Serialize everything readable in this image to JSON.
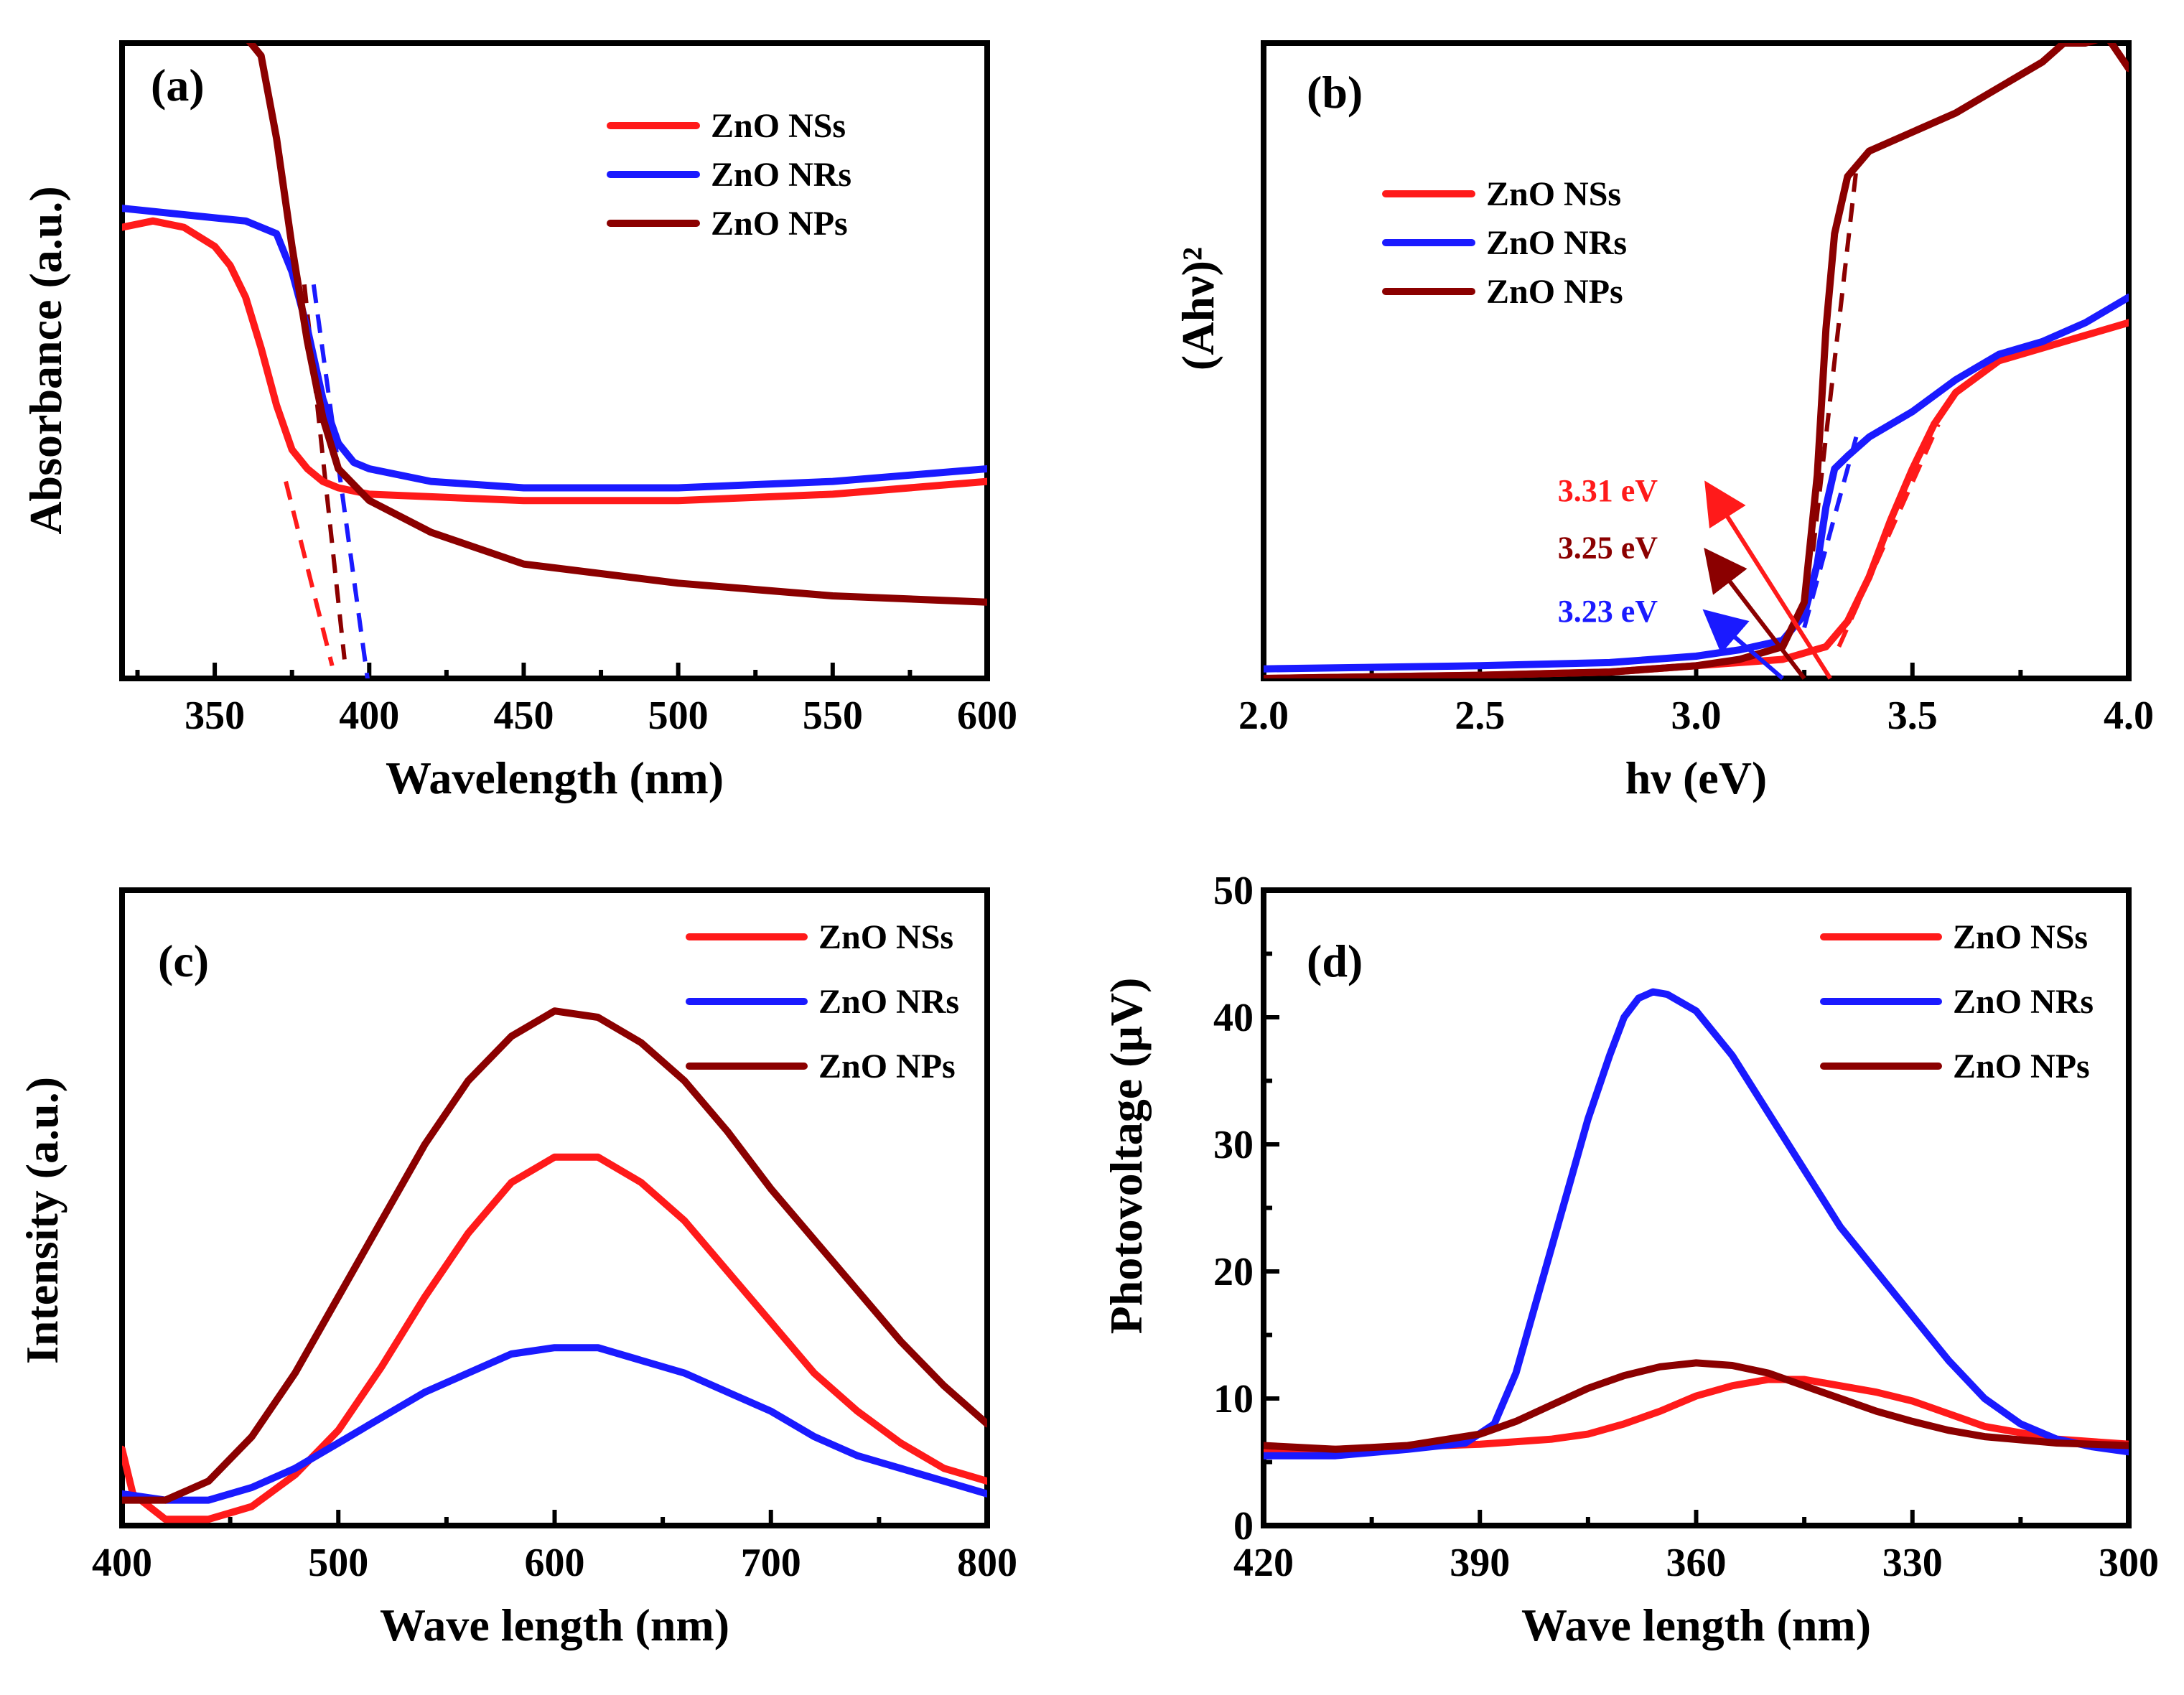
{
  "colors": {
    "NSs": "#ff1a1a",
    "NRs": "#1a1aff",
    "NPs": "#8b0000"
  },
  "chart_data": [
    {
      "id": "a",
      "type": "line",
      "panel_label": "(a)",
      "xlabel": "Wavelength (nm)",
      "ylabel": "Absorbance (a.u.)",
      "xlim": [
        320,
        600
      ],
      "ylim": [
        0,
        1.0
      ],
      "xticks": [
        350,
        400,
        450,
        500,
        550,
        600
      ],
      "yticks": [],
      "legend": [
        "ZnO NSs",
        "ZnO NRs",
        "ZnO NPs"
      ],
      "legend_position": "top-right",
      "series": [
        {
          "name": "ZnO NSs",
          "color_key": "NSs",
          "x": [
            320,
            330,
            340,
            350,
            355,
            360,
            365,
            370,
            375,
            380,
            385,
            390,
            400,
            450,
            500,
            550,
            600
          ],
          "y": [
            0.71,
            0.72,
            0.71,
            0.68,
            0.65,
            0.6,
            0.52,
            0.43,
            0.36,
            0.33,
            0.31,
            0.3,
            0.29,
            0.28,
            0.28,
            0.29,
            0.31
          ]
        },
        {
          "name": "ZnO NRs",
          "color_key": "NRs",
          "x": [
            320,
            340,
            360,
            370,
            375,
            380,
            385,
            390,
            395,
            400,
            420,
            450,
            500,
            550,
            600
          ],
          "y": [
            0.74,
            0.73,
            0.72,
            0.7,
            0.64,
            0.55,
            0.44,
            0.37,
            0.34,
            0.33,
            0.31,
            0.3,
            0.3,
            0.31,
            0.33
          ]
        },
        {
          "name": "ZnO NPs",
          "color_key": "NPs",
          "x": [
            320,
            330,
            340,
            350,
            360,
            365,
            370,
            375,
            380,
            385,
            390,
            400,
            420,
            450,
            500,
            550,
            600
          ],
          "y": [
            1.02,
            1.01,
            1.01,
            1.01,
            1.01,
            0.98,
            0.85,
            0.68,
            0.53,
            0.41,
            0.33,
            0.28,
            0.23,
            0.18,
            0.15,
            0.13,
            0.12
          ]
        }
      ],
      "fit_lines": [
        {
          "color_key": "NSs",
          "x": [
            373,
            388
          ],
          "y": [
            0.31,
            0.02
          ]
        },
        {
          "color_key": "NPs",
          "x": [
            379,
            392
          ],
          "y": [
            0.62,
            0.03
          ]
        },
        {
          "color_key": "NRs",
          "x": [
            382,
            400
          ],
          "y": [
            0.62,
            -0.02
          ]
        }
      ]
    },
    {
      "id": "b",
      "type": "line",
      "panel_label": "(b)",
      "xlabel": "hν (eV)",
      "ylabel": "(Ahν)²",
      "xlim": [
        2.0,
        4.0
      ],
      "ylim": [
        0,
        1.0
      ],
      "xticks": [
        2.0,
        2.5,
        3.0,
        3.5,
        4.0
      ],
      "xtick_labels": [
        "2.0",
        "2.5",
        "3.0",
        "3.5",
        "4.0"
      ],
      "yticks": [],
      "legend": [
        "ZnO NSs",
        "ZnO NRs",
        "ZnO NPs"
      ],
      "legend_position": "top-left",
      "series": [
        {
          "name": "ZnO NSs",
          "color_key": "NSs",
          "x": [
            2.0,
            2.5,
            2.8,
            3.0,
            3.2,
            3.3,
            3.35,
            3.4,
            3.45,
            3.5,
            3.55,
            3.6,
            3.7,
            3.8,
            3.9,
            4.0
          ],
          "y": [
            0.0,
            0.005,
            0.01,
            0.02,
            0.03,
            0.05,
            0.09,
            0.16,
            0.25,
            0.33,
            0.4,
            0.45,
            0.5,
            0.52,
            0.54,
            0.56
          ]
        },
        {
          "name": "ZnO NRs",
          "color_key": "NRs",
          "x": [
            2.0,
            2.5,
            2.8,
            3.0,
            3.1,
            3.2,
            3.25,
            3.28,
            3.3,
            3.32,
            3.35,
            3.4,
            3.5,
            3.6,
            3.7,
            3.8,
            3.9,
            4.0
          ],
          "y": [
            0.015,
            0.02,
            0.025,
            0.035,
            0.045,
            0.06,
            0.1,
            0.18,
            0.27,
            0.33,
            0.35,
            0.38,
            0.42,
            0.47,
            0.51,
            0.53,
            0.56,
            0.6
          ]
        },
        {
          "name": "ZnO NPs",
          "color_key": "NPs",
          "x": [
            2.0,
            2.5,
            2.8,
            3.0,
            3.1,
            3.2,
            3.25,
            3.28,
            3.3,
            3.32,
            3.35,
            3.4,
            3.5,
            3.6,
            3.7,
            3.8,
            3.85,
            3.9,
            3.95,
            4.0
          ],
          "y": [
            0.0,
            0.005,
            0.01,
            0.02,
            0.03,
            0.05,
            0.12,
            0.32,
            0.55,
            0.7,
            0.79,
            0.83,
            0.86,
            0.89,
            0.93,
            0.97,
            1.0,
            1.0,
            1.01,
            0.96
          ]
        }
      ],
      "fit_lines": [
        {
          "color_key": "NSs",
          "x": [
            3.33,
            3.56
          ],
          "y": [
            0.05,
            0.4
          ]
        },
        {
          "color_key": "NRs",
          "x": [
            3.25,
            3.37
          ],
          "y": [
            0.08,
            0.38
          ]
        },
        {
          "color_key": "NPs",
          "x": [
            3.27,
            3.37
          ],
          "y": [
            0.2,
            0.8
          ]
        }
      ],
      "annotations": [
        {
          "text": "3.31 eV",
          "color_key": "NSs",
          "label_x": 2.68,
          "label_y": 0.295,
          "arrow_from": [
            3.31,
            0.0
          ],
          "arrow_to": [
            3.03,
            0.3
          ]
        },
        {
          "text": "3.25 eV",
          "color_key": "NPs",
          "label_x": 2.68,
          "label_y": 0.205,
          "arrow_from": [
            3.25,
            0.0
          ],
          "arrow_to": [
            3.03,
            0.195
          ]
        },
        {
          "text": "3.23 eV",
          "color_key": "NRs",
          "label_x": 2.68,
          "label_y": 0.105,
          "arrow_from": [
            3.2,
            0.0
          ],
          "arrow_to": [
            3.03,
            0.1
          ]
        }
      ]
    },
    {
      "id": "c",
      "type": "line",
      "panel_label": "(c)",
      "xlabel": "Wave length (nm)",
      "ylabel": "Intensity (a.u.)",
      "xlim": [
        400,
        800
      ],
      "ylim": [
        0,
        1.0
      ],
      "xticks": [
        400,
        500,
        600,
        700,
        800
      ],
      "yticks": [],
      "legend": [
        "ZnO NSs",
        "ZnO NRs",
        "ZnO NPs"
      ],
      "legend_position": "top-right",
      "series": [
        {
          "name": "ZnO NSs",
          "color_key": "NSs",
          "x": [
            400,
            405,
            420,
            440,
            460,
            480,
            500,
            520,
            540,
            560,
            580,
            600,
            620,
            640,
            660,
            680,
            700,
            720,
            740,
            760,
            780,
            800
          ],
          "y": [
            0.12,
            0.05,
            0.01,
            0.01,
            0.03,
            0.08,
            0.15,
            0.25,
            0.36,
            0.46,
            0.54,
            0.58,
            0.58,
            0.54,
            0.48,
            0.4,
            0.32,
            0.24,
            0.18,
            0.13,
            0.09,
            0.07
          ]
        },
        {
          "name": "ZnO NRs",
          "color_key": "NRs",
          "x": [
            400,
            420,
            440,
            460,
            480,
            500,
            520,
            540,
            560,
            580,
            600,
            620,
            640,
            660,
            680,
            700,
            720,
            740,
            760,
            780,
            800
          ],
          "y": [
            0.05,
            0.04,
            0.04,
            0.06,
            0.09,
            0.13,
            0.17,
            0.21,
            0.24,
            0.27,
            0.28,
            0.28,
            0.26,
            0.24,
            0.21,
            0.18,
            0.14,
            0.11,
            0.09,
            0.07,
            0.05
          ]
        },
        {
          "name": "ZnO NPs",
          "color_key": "NPs",
          "x": [
            400,
            420,
            440,
            460,
            480,
            500,
            520,
            540,
            560,
            580,
            600,
            620,
            640,
            660,
            680,
            700,
            720,
            740,
            760,
            780,
            800
          ],
          "y": [
            0.04,
            0.04,
            0.07,
            0.14,
            0.24,
            0.36,
            0.48,
            0.6,
            0.7,
            0.77,
            0.81,
            0.8,
            0.76,
            0.7,
            0.62,
            0.53,
            0.45,
            0.37,
            0.29,
            0.22,
            0.16
          ]
        }
      ]
    },
    {
      "id": "d",
      "type": "line",
      "panel_label": "(d)",
      "xlabel": "Wave length (nm)",
      "ylabel": "Photovoltage (μV)",
      "xlim": [
        420,
        300
      ],
      "ylim": [
        0,
        50
      ],
      "xticks": [
        420,
        390,
        360,
        330,
        300
      ],
      "yticks": [
        0,
        10,
        20,
        30,
        40,
        50
      ],
      "legend": [
        "ZnO NSs",
        "ZnO NRs",
        "ZnO NPs"
      ],
      "legend_position": "top-right",
      "series": [
        {
          "name": "ZnO NSs",
          "color_key": "NSs",
          "x": [
            420,
            410,
            400,
            390,
            380,
            375,
            370,
            365,
            360,
            355,
            350,
            345,
            340,
            335,
            330,
            325,
            320,
            310,
            300
          ],
          "y": [
            6.0,
            6.0,
            6.2,
            6.4,
            6.8,
            7.2,
            8.0,
            9.0,
            10.2,
            11.0,
            11.5,
            11.5,
            11.0,
            10.5,
            9.8,
            8.8,
            7.8,
            6.8,
            6.4
          ]
        },
        {
          "name": "ZnO NRs",
          "color_key": "NRs",
          "x": [
            420,
            410,
            400,
            392,
            388,
            385,
            380,
            375,
            372,
            370,
            368,
            366,
            364,
            360,
            355,
            350,
            345,
            340,
            335,
            330,
            325,
            320,
            315,
            310,
            305,
            300
          ],
          "y": [
            5.5,
            5.5,
            6.0,
            6.5,
            8.0,
            12.0,
            22.0,
            32.0,
            37.0,
            40.0,
            41.5,
            42.0,
            41.8,
            40.5,
            37.0,
            32.5,
            28.0,
            23.5,
            20.0,
            16.5,
            13.0,
            10.0,
            8.0,
            6.8,
            6.2,
            5.8
          ]
        },
        {
          "name": "ZnO NPs",
          "color_key": "NPs",
          "x": [
            420,
            410,
            400,
            390,
            385,
            380,
            375,
            370,
            365,
            360,
            355,
            350,
            345,
            340,
            335,
            330,
            325,
            320,
            310,
            300
          ],
          "y": [
            6.3,
            6.0,
            6.3,
            7.2,
            8.2,
            9.5,
            10.8,
            11.8,
            12.5,
            12.8,
            12.6,
            12.0,
            11.0,
            10.0,
            9.0,
            8.2,
            7.5,
            7.0,
            6.5,
            6.3
          ]
        }
      ]
    }
  ]
}
